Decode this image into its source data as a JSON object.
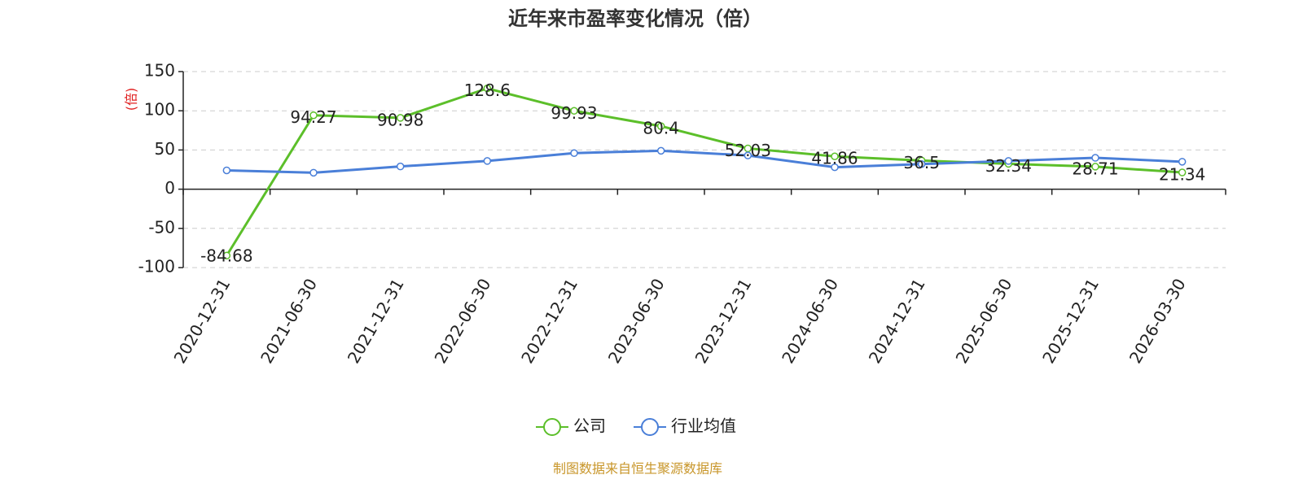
{
  "chart_data": {
    "type": "line",
    "title": "近年来市盈率变化情况（倍）",
    "y_label": "(倍)",
    "categories": [
      "2020-12-31",
      "2021-06-30",
      "2021-12-31",
      "2022-06-30",
      "2022-12-31",
      "2023-06-30",
      "2023-12-31",
      "2024-06-30",
      "2024-12-31",
      "2025-06-30",
      "2025-12-31",
      "2026-03-30"
    ],
    "series": [
      {
        "name": "公司",
        "color": "#5cbf2a",
        "values": [
          -84.68,
          94.27,
          90.98,
          128.6,
          99.93,
          80.4,
          52.03,
          41.86,
          36.5,
          32.34,
          28.71,
          21.34
        ],
        "show_labels": true
      },
      {
        "name": "行业均值",
        "color": "#4a7fd8",
        "values": [
          24,
          21,
          29,
          36,
          46,
          49,
          43,
          28,
          32,
          36,
          40,
          35
        ],
        "show_labels": false
      }
    ],
    "ylim": [
      -100,
      150
    ],
    "yticks": [
      -100,
      -50,
      0,
      50,
      100,
      150
    ],
    "grid": true,
    "source": "制图数据来自恒生聚源数据库"
  }
}
